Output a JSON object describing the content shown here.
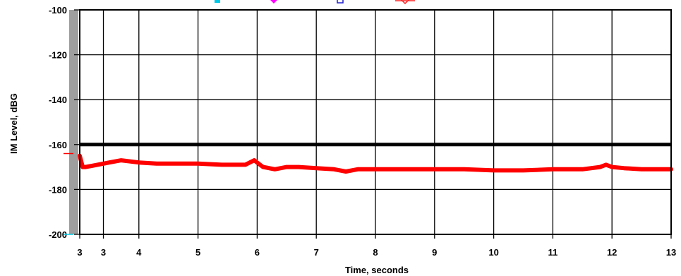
{
  "chart_data": {
    "type": "line",
    "title": "",
    "xlabel": "Time, seconds",
    "ylabel": "IM Level, dBG",
    "xlim": [
      3,
      13
    ],
    "ylim": [
      -200,
      -100
    ],
    "x_ticks": [
      {
        "value": 3.0,
        "label": "3"
      },
      {
        "value": 3.4,
        "label": "3"
      },
      {
        "value": 4,
        "label": "4"
      },
      {
        "value": 5,
        "label": "5"
      },
      {
        "value": 6,
        "label": "6"
      },
      {
        "value": 7,
        "label": "7"
      },
      {
        "value": 8,
        "label": "8"
      },
      {
        "value": 9,
        "label": "9"
      },
      {
        "value": 10,
        "label": "10"
      },
      {
        "value": 11,
        "label": "11"
      },
      {
        "value": 12,
        "label": "12"
      },
      {
        "value": 13,
        "label": "13"
      }
    ],
    "y_ticks": [
      {
        "value": -100,
        "label": "-100"
      },
      {
        "value": -120,
        "label": "-120"
      },
      {
        "value": -140,
        "label": "-140"
      },
      {
        "value": -160,
        "label": "-160"
      },
      {
        "value": -180,
        "label": "-180"
      },
      {
        "value": -200,
        "label": "-200"
      }
    ],
    "grid": true,
    "legend_position": "top",
    "series": [
      {
        "color": "#000000",
        "x": [
          3,
          13
        ],
        "y": [
          -160,
          -160
        ]
      },
      {
        "color": "#ff0000",
        "x": [
          3.0,
          3.05,
          3.1,
          3.3,
          3.5,
          3.7,
          4.0,
          4.3,
          4.6,
          5.0,
          5.4,
          5.8,
          5.95,
          6.1,
          6.3,
          6.5,
          6.7,
          7.0,
          7.3,
          7.5,
          7.7,
          8.0,
          8.5,
          9.0,
          9.5,
          10.0,
          10.5,
          11.0,
          11.5,
          11.8,
          11.9,
          12.0,
          12.2,
          12.5,
          13.0
        ],
        "y": [
          -165,
          -170,
          -170,
          -169,
          -168,
          -167,
          -168,
          -168.5,
          -168.5,
          -168.5,
          -169,
          -169,
          -167,
          -170,
          -171,
          -170,
          -170,
          -170.5,
          -171,
          -172,
          -171,
          -171,
          -171,
          -171,
          -171,
          -171.5,
          -171.5,
          -171,
          -171,
          -170,
          -169,
          -170,
          -170.5,
          -171,
          -171
        ]
      }
    ],
    "legend_markers": [
      {
        "color": "#00c8e6",
        "shape": "square"
      },
      {
        "color": "#ff00ff",
        "shape": "diamond"
      },
      {
        "color": "#1f1fcf",
        "shape": "square-open"
      },
      {
        "color": "#ff2020",
        "shape": "diamond-open"
      }
    ],
    "side_marks": [
      {
        "color": "#ff0000",
        "y": -164
      },
      {
        "color": "#00c8e6",
        "y": -200
      }
    ]
  }
}
